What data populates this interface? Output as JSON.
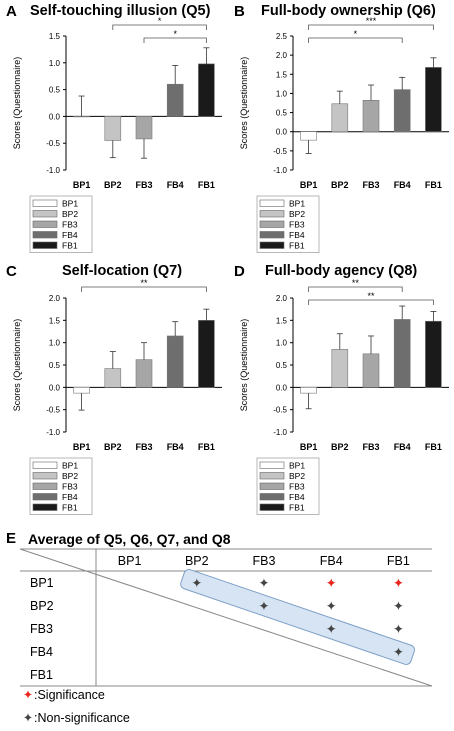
{
  "panels": [
    {
      "letter": "A",
      "title": "Self-touching illusion (Q5)",
      "chart_data": {
        "type": "bar",
        "ylabel": "Scores (Questionnaire)",
        "ylim": [
          -1.0,
          1.5
        ],
        "yticks": [
          "-1.0",
          "-0.5",
          "0.0",
          "0.5",
          "1.0",
          "1.5"
        ],
        "categories": [
          "BP1",
          "BP2",
          "FB3",
          "FB4",
          "FB1"
        ],
        "values": [
          0.0,
          -0.45,
          -0.42,
          0.6,
          0.98
        ],
        "errors": [
          0.38,
          0.32,
          0.36,
          0.35,
          0.3
        ],
        "colors": [
          "#ffffff",
          "#c4c4c4",
          "#a6a6a6",
          "#6e6e6e",
          "#1a1a1a"
        ],
        "legend": [
          "BP1",
          "BP2",
          "FB3",
          "FB4",
          "FB1"
        ],
        "significance": [
          {
            "from": 1,
            "to": 4,
            "label": "*"
          },
          {
            "from": 2,
            "to": 4,
            "label": "*"
          }
        ]
      }
    },
    {
      "letter": "B",
      "title": "Full-body ownership (Q6)",
      "chart_data": {
        "type": "bar",
        "ylabel": "Scores (Questionnaire)",
        "ylim": [
          -1.0,
          2.5
        ],
        "yticks": [
          "-1.0",
          "-0.5",
          "0.0",
          "0.5",
          "1.0",
          "1.5",
          "2.0",
          "2.5"
        ],
        "categories": [
          "BP1",
          "BP2",
          "FB3",
          "FB4",
          "FB1"
        ],
        "values": [
          -0.22,
          0.73,
          0.82,
          1.1,
          1.68
        ],
        "errors": [
          0.35,
          0.33,
          0.4,
          0.32,
          0.25
        ],
        "colors": [
          "#ffffff",
          "#c4c4c4",
          "#a6a6a6",
          "#6e6e6e",
          "#1a1a1a"
        ],
        "legend": [
          "BP1",
          "BP2",
          "FB3",
          "FB4",
          "FB1"
        ],
        "significance": [
          {
            "from": 0,
            "to": 4,
            "label": "***"
          },
          {
            "from": 0,
            "to": 3,
            "label": "*"
          }
        ]
      }
    },
    {
      "letter": "C",
      "title": "Self-location (Q7)",
      "chart_data": {
        "type": "bar",
        "ylabel": "Scores (Questionnaire)",
        "ylim": [
          -1.0,
          2.0
        ],
        "yticks": [
          "-1.0",
          "-0.5",
          "0.0",
          "0.5",
          "1.0",
          "1.5",
          "2.0"
        ],
        "categories": [
          "BP1",
          "BP2",
          "FB3",
          "FB4",
          "FB1"
        ],
        "values": [
          -0.13,
          0.42,
          0.62,
          1.15,
          1.5
        ],
        "errors": [
          0.38,
          0.38,
          0.38,
          0.32,
          0.25
        ],
        "colors": [
          "#ffffff",
          "#c4c4c4",
          "#a6a6a6",
          "#6e6e6e",
          "#1a1a1a"
        ],
        "legend": [
          "BP1",
          "BP2",
          "FB3",
          "FB4",
          "FB1"
        ],
        "significance": [
          {
            "from": 0,
            "to": 4,
            "label": "**"
          }
        ]
      }
    },
    {
      "letter": "D",
      "title": "Full-body agency (Q8)",
      "chart_data": {
        "type": "bar",
        "ylabel": "Scores (Questionnaire)",
        "ylim": [
          -1.0,
          2.0
        ],
        "yticks": [
          "-1.0",
          "-0.5",
          "0.0",
          "0.5",
          "1.0",
          "1.5",
          "2.0"
        ],
        "categories": [
          "BP1",
          "BP2",
          "FB3",
          "FB4",
          "FB1"
        ],
        "values": [
          -0.13,
          0.85,
          0.75,
          1.52,
          1.48
        ],
        "errors": [
          0.35,
          0.35,
          0.4,
          0.3,
          0.22
        ],
        "colors": [
          "#ffffff",
          "#c4c4c4",
          "#a6a6a6",
          "#6e6e6e",
          "#1a1a1a"
        ],
        "legend": [
          "BP1",
          "BP2",
          "FB3",
          "FB4",
          "FB1"
        ],
        "significance": [
          {
            "from": 0,
            "to": 3,
            "label": "**"
          },
          {
            "from": 0,
            "to": 4,
            "label": "**"
          }
        ]
      }
    }
  ],
  "matrix": {
    "letter": "E",
    "title": "Average of Q5, Q6, Q7, and Q8",
    "columns": [
      "BP1",
      "BP2",
      "FB3",
      "FB4",
      "FB1"
    ],
    "rows": [
      "BP1",
      "BP2",
      "FB3",
      "FB4",
      "FB1"
    ],
    "cells": [
      {
        "row": 0,
        "col": 1,
        "significant": false
      },
      {
        "row": 0,
        "col": 2,
        "significant": false
      },
      {
        "row": 0,
        "col": 3,
        "significant": true
      },
      {
        "row": 0,
        "col": 4,
        "significant": true
      },
      {
        "row": 1,
        "col": 2,
        "significant": false
      },
      {
        "row": 1,
        "col": 3,
        "significant": false
      },
      {
        "row": 1,
        "col": 4,
        "significant": false
      },
      {
        "row": 2,
        "col": 3,
        "significant": false
      },
      {
        "row": 2,
        "col": 4,
        "significant": false
      },
      {
        "row": 3,
        "col": 4,
        "significant": false
      }
    ],
    "colors": {
      "significant": "#e8281e",
      "non_significant": "#444444",
      "highlight_fill": "#d6e4f3",
      "highlight_stroke": "#7d9fc6"
    },
    "legend": [
      {
        "symbol": "✦",
        "text": ":Significance",
        "significant": true
      },
      {
        "symbol": "✦",
        "text": ":Non-significance",
        "significant": false
      }
    ]
  }
}
